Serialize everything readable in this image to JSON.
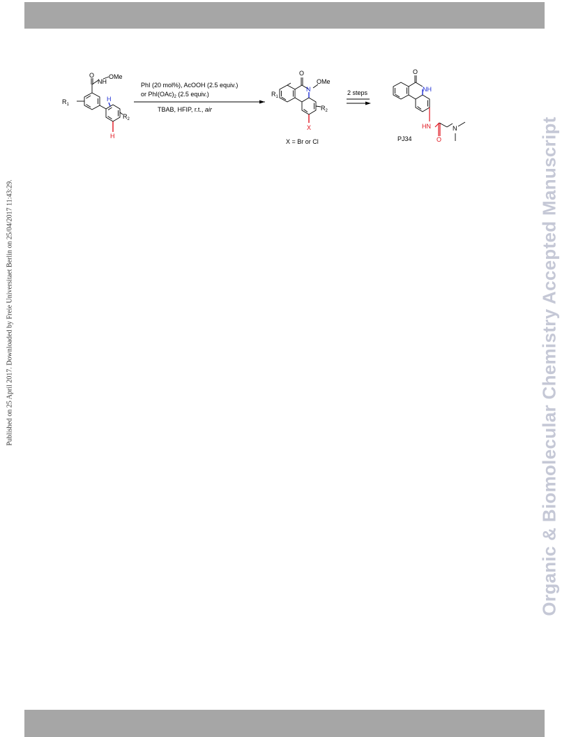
{
  "sidebar": {
    "publication_note": "Published on 25 April 2017. Downloaded by Freie Universitaet Berlin on 25/04/2017 11:43:29.",
    "journal_watermark": "Organic & Biomolecular Chemistry Accepted Manuscript"
  },
  "scheme": {
    "start": {
      "r1": "R",
      "r1_sub": "1",
      "oxygen": "O",
      "nh": "NH",
      "ome": "OMe",
      "h_blue": "H",
      "h_red": "H",
      "r2": "R",
      "r2_sub": "2"
    },
    "step1": {
      "reagent_line1": "PhI (20 mol%), AcOOH (2.5 equiv.)",
      "reagent_line2_a": "or PhI(OAc)",
      "reagent_line2_sub": "2",
      "reagent_line2_b": " (2.5 equiv.)",
      "conditions_a": "TBAB, HFIP, r.t., ",
      "conditions_italic": "air"
    },
    "product": {
      "oxygen": "O",
      "n": "N",
      "ome": "OMe",
      "r1": "R",
      "r1_sub": "1",
      "r2": "R",
      "r2_sub": "2",
      "x": "X",
      "x_caption": "X = Br or Cl"
    },
    "step2": {
      "label": "2 steps"
    },
    "target": {
      "oxygen": "O",
      "nh": "NH",
      "hn": "HN",
      "amide_o": "O",
      "n": "N",
      "name": "PJ34"
    },
    "colors": {
      "blue": "#1f2fd6",
      "red": "#e0141e",
      "ink": "#000000"
    }
  }
}
